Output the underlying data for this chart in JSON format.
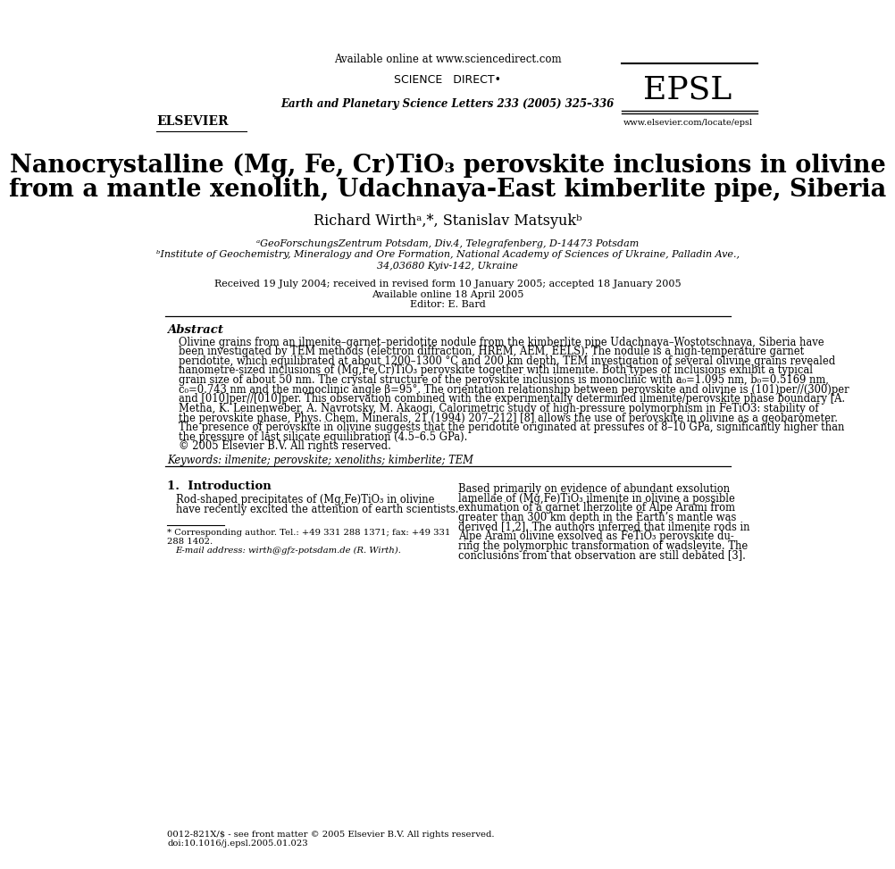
{
  "bg_color": "#ffffff",
  "header_available_online": "Available online at www.sciencedirect.com",
  "journal_info": "Earth and Planetary Science Letters 233 (2005) 325–336",
  "epsl_text": "EPSL",
  "elsevier_text": "ELSEVIER",
  "sciencedirect_text": "SCIENCE   DIRECT•",
  "www_text": "www.elsevier.com/locate/epsl",
  "article_title_line1": "Nanocrystalline (Mg, Fe, Cr)TiO₃ perovskite inclusions in olivine",
  "article_title_line2": "from a mantle xenolith, Udachnaya-East kimberlite pipe, Siberia",
  "authors": "Richard Wirthᵃ,*, Stanislav Matsyukᵇ",
  "affil_a": "ᵃGeoForschungsZentrum Potsdam, Div.4, Telegrafenberg, D-14473 Potsdam",
  "affil_b": "ᵇInstitute of Geochemistry, Mineralogy and Ore Formation, National Academy of Sciences of Ukraine, Palladin Ave.,",
  "affil_b2": "34,03680 Kyiv-142, Ukraine",
  "received_text": "Received 19 July 2004; received in revised form 10 January 2005; accepted 18 January 2005",
  "available_online": "Available online 18 April 2005",
  "editor_text": "Editor: E. Bard",
  "abstract_heading": "Abstract",
  "abstract_lines": [
    "Olivine grains from an ilmenite–garnet–peridotite nodule from the kimberlite pipe Udachnaya–Wostotschnaya, Siberia have",
    "been investigated by TEM methods (electron diffraction, HREM, AEM, EELS). The nodule is a high-temperature garnet",
    "peridotite, which equilibrated at about 1200–1300 °C and 200 km depth. TEM investigation of several olivine grains revealed",
    "nanometre-sized inclusions of (Mg,Fe,Cr)TiO₃ perovskite together with ilmenite. Both types of inclusions exhibit a typical",
    "grain size of about 50 nm. The crystal structure of the perovskite inclusions is monoclinic with a₀=1.095 nm, b₀=0.5169 nm,",
    "c₀=0.743 nm and the monoclinic angle β=95°. The orientation relationship between perovskite and olivine is (101)per//(300)per",
    "and [010]per//[010]per. This observation combined with the experimentally determined ilmenite/perovskite phase boundary [A.",
    "Metha, K. Leinenweber, A. Navrotsky, M. Akaogi, Calorimetric study of high-pressure polymorphism in FeTiO3: stability of",
    "the perovskite phase, Phys. Chem. Minerals, 21 (1994) 207–212] [8] allows the use of perovskite in olivine as a geobarometer.",
    "The presence of perovskite in olivine suggests that the peridotite originated at pressures of 8–10 GPa, significantly higher than",
    "the pressure of last silicate equilibration (4.5–6.5 GPa).",
    "© 2005 Elsevier B.V. All rights reserved."
  ],
  "keywords_text": "Keywords: ilmenite; perovskite; xenoliths; kimberlite; TEM",
  "intro_heading": "1.  Introduction",
  "intro_left_lines": [
    "Rod-shaped precipitates of (Mg,Fe)TiO₃ in olivine",
    "have recently excited the attention of earth scientists."
  ],
  "footnote_star": "* Corresponding author. Tel.: +49 331 288 1371; fax: +49 331",
  "footnote_star2": "288 1402.",
  "footnote_email": "E-mail address: wirth@gfz-potsdam.de (R. Wirth).",
  "copyright_line1": "0012-821X/$ - see front matter © 2005 Elsevier B.V. All rights reserved.",
  "copyright_line2": "doi:10.1016/j.epsl.2005.01.023",
  "intro_right_lines": [
    "Based primarily on evidence of abundant exsolution",
    "lamellae of (Mg,Fe)TiO₃ ilmenite in olivine a possible",
    "exhumation of a garnet lherzolite of Alpe Arami from",
    "greater than 300 km depth in the Earth’s mantle was",
    "derived [1,2]. The authors inferred that ilmenite rods in",
    "Alpe Arami olivine exsolved as FeTiO₃ perovskite du-",
    "ring the polymorphic transformation of wadsleyite. The",
    "conclusions from that observation are still debated [3]."
  ]
}
